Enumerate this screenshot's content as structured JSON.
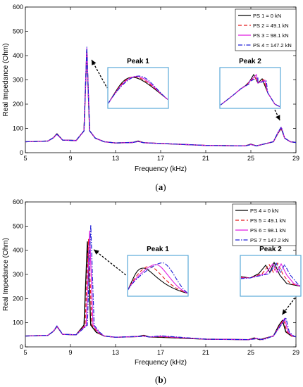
{
  "chart_data": [
    {
      "type": "line",
      "caption_letter": "a",
      "xlabel": "Frequency (kHz)",
      "ylabel": "Real Impedance (Ohm)",
      "xlim": [
        5,
        29
      ],
      "ylim": [
        0,
        600
      ],
      "xticks": [
        5,
        9,
        13,
        17,
        21,
        25,
        29
      ],
      "yticks": [
        0,
        100,
        200,
        300,
        400,
        500,
        600
      ],
      "legend_position": "top-right",
      "series": [
        {
          "name": "PS 1 = 0 kN",
          "color": "#000000",
          "dash": "solid",
          "x": [
            5,
            7,
            7.5,
            7.8,
            8.3,
            9.5,
            10.2,
            10.45,
            10.7,
            11.2,
            12,
            13,
            14.5,
            15,
            15.5,
            17,
            21,
            24.5,
            25,
            25.5,
            27,
            27.4,
            27.7,
            28,
            28.5,
            29
          ],
          "y": [
            45,
            48,
            62,
            78,
            52,
            50,
            90,
            425,
            90,
            60,
            45,
            40,
            42,
            48,
            41,
            38,
            30,
            28,
            35,
            28,
            45,
            80,
            100,
            60,
            45,
            42
          ]
        },
        {
          "name": "PS 2 = 49.1 kN",
          "color": "#e41a1c",
          "dash": "dashed",
          "x": [
            5,
            7,
            7.5,
            7.8,
            8.3,
            9.5,
            10.2,
            10.45,
            10.7,
            11.2,
            12,
            13,
            14.5,
            15,
            15.5,
            17,
            21,
            24.5,
            25,
            25.5,
            27,
            27.4,
            27.7,
            28,
            28.5,
            29
          ],
          "y": [
            45,
            48,
            62,
            77,
            52,
            50,
            90,
            428,
            90,
            60,
            45,
            40,
            42,
            47,
            41,
            38,
            30,
            28,
            34,
            28,
            45,
            80,
            102,
            60,
            45,
            42
          ]
        },
        {
          "name": "PS 3 = 98.1 kN",
          "color": "#e01ee0",
          "dash": "solid",
          "x": [
            5,
            7,
            7.5,
            7.8,
            8.3,
            9.5,
            10.2,
            10.45,
            10.7,
            11.2,
            12,
            13,
            14.5,
            15,
            15.5,
            17,
            21,
            24.5,
            25,
            25.5,
            27,
            27.4,
            27.7,
            28,
            28.5,
            29
          ],
          "y": [
            45,
            48,
            62,
            76,
            52,
            50,
            90,
            430,
            90,
            60,
            45,
            40,
            42,
            46,
            41,
            38,
            30,
            28,
            34,
            28,
            45,
            82,
            104,
            60,
            45,
            42
          ]
        },
        {
          "name": "PS 4 = 147.2 kN",
          "color": "#1f1fd6",
          "dash": "dashdot",
          "x": [
            5,
            7,
            7.5,
            7.8,
            8.3,
            9.5,
            10.2,
            10.45,
            10.7,
            11.2,
            12,
            13,
            14.5,
            15,
            15.5,
            17,
            21,
            24.5,
            25,
            25.5,
            27,
            27.4,
            27.7,
            28,
            28.5,
            29
          ],
          "y": [
            45,
            48,
            62,
            76,
            52,
            50,
            90,
            435,
            90,
            60,
            45,
            40,
            42,
            46,
            41,
            38,
            30,
            28,
            33,
            28,
            45,
            84,
            106,
            60,
            45,
            42
          ]
        }
      ],
      "annotations": [
        {
          "text": "Peak 1",
          "target_x": 10.5,
          "target_y": 400
        },
        {
          "text": "Peak 2",
          "target_x": 27.7,
          "target_y": 110
        }
      ]
    },
    {
      "type": "line",
      "caption_letter": "b",
      "xlabel": "Frequency (kHz)",
      "ylabel": "Real Impedance (Ohm)",
      "xlim": [
        5,
        29
      ],
      "ylim": [
        0,
        600
      ],
      "xticks": [
        5,
        9,
        13,
        17,
        21,
        25,
        29
      ],
      "yticks": [
        0,
        100,
        200,
        300,
        400,
        500,
        600
      ],
      "legend_position": "top-right",
      "series": [
        {
          "name": "PS 4 = 0 kN",
          "color": "#000000",
          "dash": "solid",
          "x": [
            5,
            7,
            7.5,
            7.8,
            8.3,
            9.5,
            10.2,
            10.5,
            10.8,
            11.3,
            12,
            13,
            15,
            15.5,
            16,
            17,
            21,
            24.8,
            25.3,
            25.8,
            27,
            27.5,
            27.8,
            28.1,
            28.6,
            29
          ],
          "y": [
            45,
            48,
            65,
            85,
            52,
            50,
            90,
            435,
            90,
            60,
            45,
            40,
            43,
            48,
            41,
            40,
            32,
            30,
            37,
            30,
            45,
            90,
            110,
            62,
            45,
            42
          ]
        },
        {
          "name": "PS 5 = 49.1 kN",
          "color": "#e41a1c",
          "dash": "dashed",
          "x": [
            5,
            7,
            7.5,
            7.8,
            8.3,
            9.5,
            10.3,
            10.6,
            10.9,
            11.4,
            12,
            13,
            15,
            15.5,
            16,
            17,
            21,
            24.8,
            25.4,
            25.9,
            27,
            27.6,
            27.9,
            28.2,
            28.6,
            29
          ],
          "y": [
            45,
            48,
            65,
            85,
            52,
            50,
            90,
            445,
            90,
            60,
            45,
            40,
            43,
            46,
            41,
            42,
            32,
            30,
            36,
            30,
            45,
            92,
            113,
            62,
            45,
            42
          ]
        },
        {
          "name": "PS 6 = 98.1 kN",
          "color": "#e01ee0",
          "dash": "solid",
          "x": [
            5,
            7,
            7.5,
            7.8,
            8.3,
            9.5,
            10.4,
            10.7,
            11.0,
            11.5,
            12,
            13,
            15,
            15.5,
            16,
            17,
            21,
            24.8,
            25.5,
            26,
            27,
            27.7,
            28.0,
            28.3,
            28.7,
            29
          ],
          "y": [
            45,
            48,
            65,
            86,
            52,
            50,
            90,
            480,
            90,
            60,
            45,
            40,
            43,
            45,
            41,
            44,
            32,
            30,
            35,
            30,
            45,
            95,
            118,
            62,
            45,
            42
          ]
        },
        {
          "name": "PS 7 = 147.2 kN",
          "color": "#1f1fd6",
          "dash": "dashdot",
          "x": [
            5,
            7,
            7.5,
            7.8,
            8.3,
            9.5,
            10.5,
            10.8,
            11.1,
            11.6,
            12,
            13,
            15,
            15.5,
            16,
            17,
            21,
            24.8,
            25.6,
            26.1,
            27,
            27.8,
            28.1,
            28.4,
            28.8,
            29
          ],
          "y": [
            45,
            48,
            65,
            87,
            52,
            50,
            90,
            505,
            90,
            60,
            45,
            40,
            43,
            44,
            41,
            46,
            32,
            30,
            34,
            30,
            45,
            98,
            122,
            62,
            45,
            42
          ]
        }
      ],
      "annotations": [
        {
          "text": "Peak 1",
          "target_x": 10.7,
          "target_y": 420
        },
        {
          "text": "Peak 2",
          "target_x": 27.9,
          "target_y": 110
        }
      ]
    }
  ]
}
